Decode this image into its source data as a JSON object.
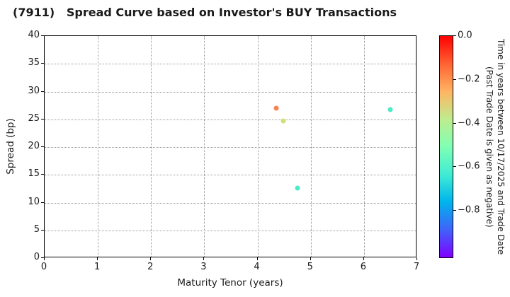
{
  "title": "(7911)   Spread Curve based on Investor's BUY Transactions",
  "chart_data": {
    "type": "scatter",
    "title": "(7911)   Spread Curve based on Investor's BUY Transactions",
    "xlabel": "Maturity Tenor (years)",
    "ylabel": "Spread (bp)",
    "xlim": [
      0,
      7
    ],
    "ylim": [
      0,
      40
    ],
    "xticks": [
      0,
      1,
      2,
      3,
      4,
      5,
      6,
      7
    ],
    "yticks": [
      0,
      5,
      10,
      15,
      20,
      25,
      30,
      35,
      40
    ],
    "grid": true,
    "grid_style": "dotted",
    "points": [
      {
        "x": 4.35,
        "y": 27.0,
        "time_years": -0.21,
        "color": "#f8834e"
      },
      {
        "x": 4.48,
        "y": 24.7,
        "time_years": -0.34,
        "color": "#cfe077"
      },
      {
        "x": 4.75,
        "y": 12.6,
        "time_years": -0.61,
        "color": "#4deac6"
      },
      {
        "x": 6.49,
        "y": 26.7,
        "time_years": -0.61,
        "color": "#4deac6"
      }
    ],
    "colorbar": {
      "label_line1": "Time in years between 10/17/2025 and Trade Date",
      "label_line2": "(Past Trade Date is given as negative)",
      "colormap": "rainbow",
      "vmax": 0.0,
      "vmin": -1.02,
      "ticks": [
        {
          "value": 0.0,
          "label": "0.0"
        },
        {
          "value": -0.2,
          "label": "−0.2"
        },
        {
          "value": -0.4,
          "label": "−0.4"
        },
        {
          "value": -0.6,
          "label": "−0.6"
        },
        {
          "value": -0.8,
          "label": "−0.8"
        }
      ],
      "gradient_stops_bottom_to_top": [
        "#8000ff",
        "#4062fa",
        "#00b4ec",
        "#40ecd4",
        "#80ffb4",
        "#bfec8e",
        "#ffb462",
        "#ff6232",
        "#ff0000"
      ]
    }
  }
}
